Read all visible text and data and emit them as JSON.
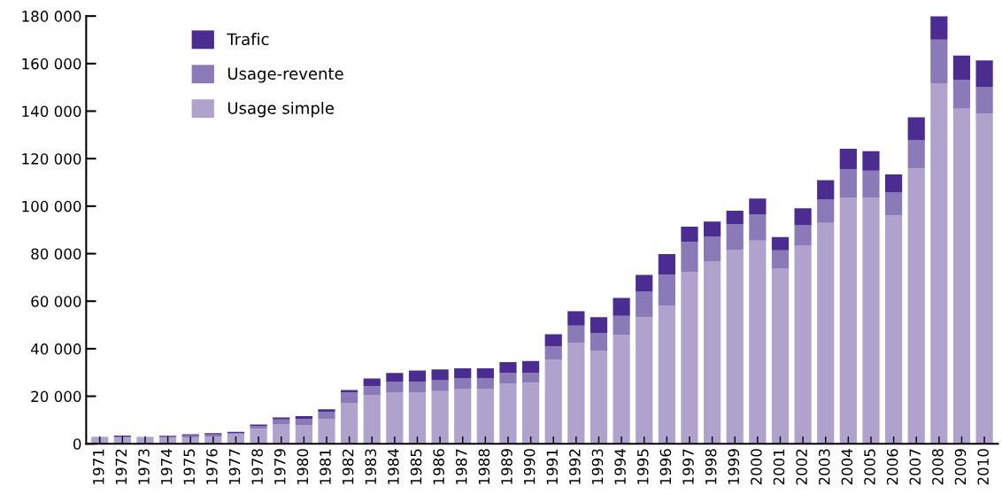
{
  "chart_data": {
    "type": "bar",
    "stacked": true,
    "legend": "top left",
    "grid": false,
    "categories": [
      "1971",
      "1972",
      "1973",
      "1974",
      "1975",
      "1976",
      "1977",
      "1978",
      "1979",
      "1980",
      "1981",
      "1982",
      "1983",
      "1984",
      "1985",
      "1986",
      "1987",
      "1988",
      "1989",
      "1990",
      "1991",
      "1992",
      "1993",
      "1994",
      "1995",
      "1996",
      "1997",
      "1998",
      "1999",
      "2000",
      "2001",
      "2002",
      "2003",
      "2004",
      "2005",
      "2006",
      "2007",
      "2008",
      "2009",
      "2010"
    ],
    "series": [
      {
        "name": "Usage simple",
        "color": "#afa3ce",
        "values": [
          2600,
          2500,
          2600,
          2700,
          2500,
          2900,
          4000,
          6300,
          8300,
          7900,
          10300,
          17000,
          20600,
          21700,
          21700,
          22200,
          23200,
          23200,
          25200,
          25700,
          35400,
          42600,
          39000,
          45700,
          53300,
          58000,
          72200,
          76800,
          81700,
          85500,
          73700,
          83400,
          93000,
          103700,
          103700,
          96000,
          115900,
          151700,
          141000,
          138900
        ]
      },
      {
        "name": "Usage-revente",
        "color": "#8b7ab8",
        "values": [
          300,
          500,
          300,
          500,
          1000,
          1000,
          500,
          1200,
          1900,
          2500,
          3200,
          4700,
          3600,
          4500,
          4500,
          4500,
          4500,
          4500,
          4600,
          4100,
          5600,
          7100,
          7700,
          8100,
          10700,
          13200,
          12700,
          10500,
          10800,
          11100,
          7700,
          8500,
          9700,
          11800,
          11200,
          9700,
          11800,
          18400,
          12200,
          11200
        ]
      },
      {
        "name": "Trafic",
        "color": "#4b2d91",
        "values": [
          0,
          400,
          0,
          200,
          500,
          600,
          500,
          600,
          900,
          1200,
          1000,
          900,
          3300,
          3600,
          4600,
          4600,
          4100,
          4100,
          4600,
          5000,
          5100,
          6100,
          6600,
          7600,
          7100,
          8600,
          6500,
          6200,
          5600,
          6600,
          5600,
          7200,
          8200,
          8700,
          8200,
          7700,
          9700,
          9900,
          10200,
          11200
        ]
      }
    ],
    "ylim": [
      0,
      180000
    ],
    "yticks": [
      {
        "value": 0,
        "label": "0"
      },
      {
        "value": 20000,
        "label": "20 000"
      },
      {
        "value": 40000,
        "label": "40 000"
      },
      {
        "value": 60000,
        "label": "60 000"
      },
      {
        "value": 80000,
        "label": "80 000"
      },
      {
        "value": 100000,
        "label": "100 000"
      },
      {
        "value": 120000,
        "label": "120 000"
      },
      {
        "value": 140000,
        "label": "140 000"
      },
      {
        "value": 160000,
        "label": "160 000"
      },
      {
        "value": 180000,
        "label": "180 000"
      }
    ]
  }
}
